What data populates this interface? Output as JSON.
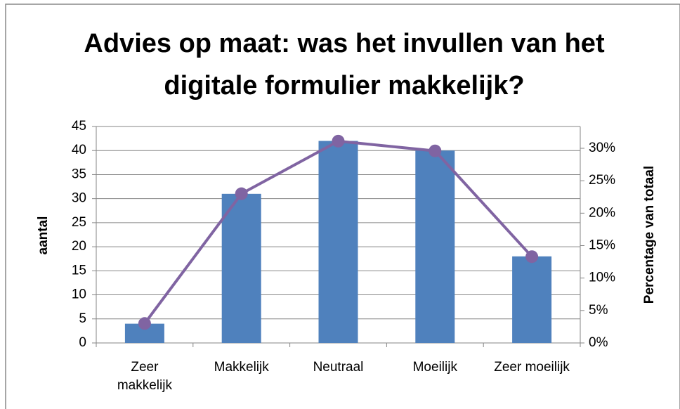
{
  "chart_data": {
    "type": "bar",
    "title": "Advies op maat: was het invullen van het digitale formulier makkelijk?",
    "categories": [
      "Zeer makkelijk",
      "Makkelijk",
      "Neutraal",
      "Moeilijk",
      "Zeer moeilijk"
    ],
    "series": [
      {
        "type": "bar",
        "color": "#4f81bd",
        "values": [
          4,
          31,
          42,
          40,
          18
        ]
      },
      {
        "type": "line",
        "axis": "y2",
        "color": "#8064a2",
        "values": [
          3.0,
          23.0,
          31.1,
          29.6,
          13.3
        ]
      }
    ],
    "ylabel": "aantal",
    "y2label": "Percentage van totaal",
    "ylim": [
      0,
      45
    ],
    "yticks": [
      0,
      5,
      10,
      15,
      20,
      25,
      30,
      35,
      40,
      45
    ],
    "y2lim": [
      0,
      33.36
    ],
    "y2ticks": [
      {
        "value": 0,
        "label": "0%"
      },
      {
        "value": 5,
        "label": "5%"
      },
      {
        "value": 10,
        "label": "10%"
      },
      {
        "value": 15,
        "label": "15%"
      },
      {
        "value": 20,
        "label": "20%"
      },
      {
        "value": 25,
        "label": "25%"
      },
      {
        "value": 30,
        "label": "30%"
      }
    ],
    "grid": true
  }
}
